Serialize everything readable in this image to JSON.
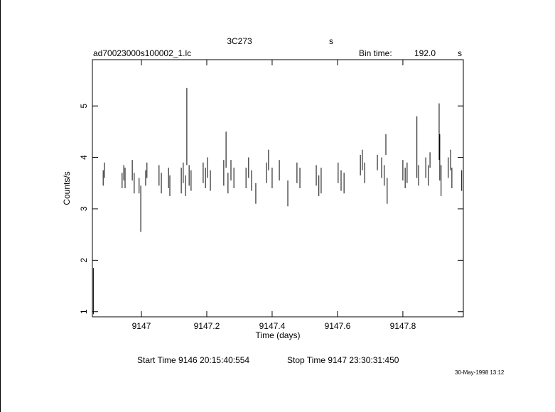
{
  "chart_data": {
    "type": "errorbar",
    "title": "3C273",
    "title_unit": "s",
    "subtitle": "ad70023000s100002_1.lc",
    "bin_time_label": "Bin time:",
    "bin_time": "192.0",
    "bin_time_unit": "s",
    "xlabel": "Time (days)",
    "ylabel": "Counts/s",
    "start_time": "Start Time  9146 20:15:40:554",
    "stop_time": "Stop Time  9147 23:30:31:450",
    "stamp": "30-May-1998 13:12",
    "color": "#000000",
    "xlim": [
      9146.85,
      9147.985
    ],
    "xticks": [
      9147,
      9147.2,
      9147.4,
      9147.6,
      9147.8
    ],
    "ylim": [
      0.9,
      5.9
    ],
    "yticks": [
      1,
      2,
      3,
      4,
      5
    ],
    "x": [
      9146.853,
      9146.883,
      9146.887,
      9146.941,
      9146.946,
      9146.95,
      9146.972,
      9146.978,
      9146.993,
      9146.998,
      9147.013,
      9147.017,
      9147.054,
      9147.061,
      9147.083,
      9147.087,
      9147.122,
      9147.128,
      9147.135,
      9147.139,
      9147.146,
      9147.152,
      9147.189,
      9147.196,
      9147.202,
      9147.211,
      9147.252,
      9147.259,
      9147.265,
      9147.274,
      9147.283,
      9147.32,
      9147.328,
      9147.337,
      9147.35,
      9147.383,
      9147.389,
      9147.4,
      9147.422,
      9147.448,
      9147.476,
      9147.485,
      9147.535,
      9147.543,
      9147.55,
      9147.602,
      9147.611,
      9147.62,
      9147.67,
      9147.676,
      9147.683,
      9147.722,
      9147.735,
      9147.743,
      9147.748,
      9147.752,
      9147.8,
      9147.807,
      9147.813,
      9147.843,
      9147.848,
      9147.87,
      9147.878,
      9147.883,
      9147.911,
      9147.913,
      9147.917,
      9147.939,
      9147.946,
      9147.95,
      9147.98
    ],
    "y": [
      1.4,
      3.6,
      3.75,
      3.55,
      3.7,
      3.6,
      3.75,
      3.5,
      3.45,
      3.0,
      3.6,
      3.75,
      3.65,
      3.5,
      3.6,
      3.45,
      3.55,
      3.7,
      3.45,
      4.6,
      3.65,
      3.55,
      3.7,
      3.6,
      3.8,
      3.55,
      3.7,
      4.15,
      3.5,
      3.75,
      3.6,
      3.6,
      3.8,
      3.55,
      3.3,
      3.7,
      3.95,
      3.6,
      3.75,
      3.3,
      3.7,
      3.6,
      3.65,
      3.45,
      3.55,
      3.7,
      3.55,
      3.5,
      3.85,
      3.95,
      3.7,
      3.9,
      3.8,
      3.65,
      4.25,
      3.35,
      3.75,
      3.6,
      3.7,
      4.2,
      3.65,
      3.8,
      3.65,
      3.95,
      4.5,
      4.0,
      3.55,
      3.8,
      3.95,
      3.6,
      3.55
    ],
    "err": [
      0.45,
      0.15,
      0.15,
      0.15,
      0.15,
      0.2,
      0.2,
      0.2,
      0.15,
      0.45,
      0.15,
      0.15,
      0.2,
      0.2,
      0.2,
      0.2,
      0.25,
      0.2,
      0.2,
      0.75,
      0.2,
      0.2,
      0.2,
      0.2,
      0.2,
      0.2,
      0.25,
      0.35,
      0.2,
      0.2,
      0.2,
      0.2,
      0.2,
      0.2,
      0.2,
      0.2,
      0.2,
      0.2,
      0.2,
      0.25,
      0.2,
      0.2,
      0.2,
      0.2,
      0.25,
      0.2,
      0.2,
      0.2,
      0.2,
      0.2,
      0.2,
      0.15,
      0.2,
      0.2,
      0.2,
      0.25,
      0.2,
      0.2,
      0.2,
      0.6,
      0.2,
      0.2,
      0.2,
      0.15,
      0.55,
      0.45,
      0.3,
      0.2,
      0.2,
      0.2,
      0.2
    ]
  }
}
